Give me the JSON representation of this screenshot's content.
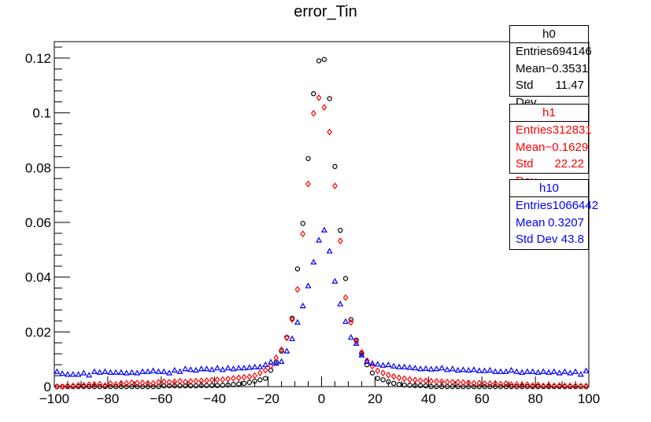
{
  "chart_data": {
    "type": "scatter",
    "title": "error_Tin",
    "xlabel": "",
    "ylabel": "",
    "xlim": [
      -100,
      100
    ],
    "ylim": [
      0,
      0.126
    ],
    "x_ticks": [
      "−100",
      "−80",
      "−60",
      "−40",
      "−20",
      "0",
      "20",
      "40",
      "60",
      "80",
      "100"
    ],
    "y_ticks": [
      "0",
      "0.02",
      "0.04",
      "0.06",
      "0.08",
      "0.1",
      "0.12"
    ],
    "grid": false,
    "series": [
      {
        "name": "h0",
        "marker": "circle",
        "color": "#000000",
        "points": [
          [
            -99,
            0.0
          ],
          [
            -97,
            0.0
          ],
          [
            -95,
            0.0
          ],
          [
            -93,
            0.0
          ],
          [
            -91,
            0.0
          ],
          [
            -89,
            0.0
          ],
          [
            -87,
            0.0
          ],
          [
            -85,
            0.0
          ],
          [
            -83,
            0.0
          ],
          [
            -81,
            0.0
          ],
          [
            -79,
            0.0
          ],
          [
            -77,
            0.0
          ],
          [
            -75,
            0.0
          ],
          [
            -73,
            0.0
          ],
          [
            -71,
            0.0
          ],
          [
            -69,
            0.0
          ],
          [
            -67,
            0.0
          ],
          [
            -65,
            0.0
          ],
          [
            -63,
            0.0
          ],
          [
            -61,
            0.0
          ],
          [
            -59,
            0.0003
          ],
          [
            -57,
            0.0003
          ],
          [
            -55,
            0.0003
          ],
          [
            -53,
            0.0003
          ],
          [
            -51,
            0.0003
          ],
          [
            -49,
            0.0003
          ],
          [
            -47,
            0.0003
          ],
          [
            -45,
            0.0004
          ],
          [
            -43,
            0.0004
          ],
          [
            -41,
            0.0004
          ],
          [
            -39,
            0.0004
          ],
          [
            -37,
            0.0005
          ],
          [
            -35,
            0.0006
          ],
          [
            -33,
            0.0008
          ],
          [
            -31,
            0.001
          ],
          [
            -29,
            0.0012
          ],
          [
            -27,
            0.0015
          ],
          [
            -25,
            0.002
          ],
          [
            -23,
            0.0025
          ],
          [
            -21,
            0.003
          ],
          [
            -19,
            0.006
          ],
          [
            -17,
            0.009
          ],
          [
            -15,
            0.013
          ],
          [
            -13,
            0.018
          ],
          [
            -11,
            0.025
          ],
          [
            -9,
            0.043
          ],
          [
            -7,
            0.0596
          ],
          [
            -5,
            0.0833
          ],
          [
            -3,
            0.107
          ],
          [
            -1,
            0.119
          ],
          [
            1,
            0.1195
          ],
          [
            3,
            0.1052
          ],
          [
            5,
            0.0804
          ],
          [
            7,
            0.0571
          ],
          [
            9,
            0.0395
          ],
          [
            11,
            0.0245
          ],
          [
            13,
            0.017
          ],
          [
            15,
            0.012
          ],
          [
            17,
            0.008
          ],
          [
            19,
            0.005
          ],
          [
            21,
            0.003
          ],
          [
            23,
            0.0025
          ],
          [
            25,
            0.0018
          ],
          [
            27,
            0.0012
          ],
          [
            29,
            0.0008
          ],
          [
            31,
            0.0006
          ],
          [
            33,
            0.0005
          ],
          [
            35,
            0.0004
          ],
          [
            37,
            0.0004
          ],
          [
            39,
            0.0003
          ],
          [
            41,
            0.0
          ],
          [
            43,
            0.0
          ],
          [
            45,
            0.0
          ],
          [
            47,
            0.0
          ],
          [
            49,
            0.0
          ],
          [
            51,
            0.0
          ],
          [
            53,
            0.0
          ],
          [
            55,
            0.0
          ],
          [
            57,
            0.0
          ],
          [
            59,
            0.0
          ],
          [
            61,
            0.0
          ],
          [
            63,
            0.0
          ],
          [
            65,
            0.0
          ],
          [
            67,
            0.0
          ],
          [
            69,
            0.0
          ],
          [
            71,
            0.0
          ],
          [
            73,
            0.0
          ],
          [
            75,
            0.0
          ],
          [
            77,
            0.0
          ],
          [
            79,
            0.0
          ],
          [
            81,
            0.0
          ],
          [
            83,
            0.0
          ],
          [
            85,
            0.0
          ],
          [
            87,
            0.0
          ],
          [
            89,
            0.0
          ],
          [
            91,
            0.0
          ],
          [
            93,
            0.0
          ],
          [
            95,
            0.0
          ],
          [
            97,
            0.0
          ],
          [
            99,
            0.0
          ]
        ]
      },
      {
        "name": "h1",
        "marker": "diamond",
        "color": "#ff0000",
        "points": [
          [
            -99,
            0.0
          ],
          [
            -97,
            0.0
          ],
          [
            -95,
            0.0003
          ],
          [
            -93,
            0.0003
          ],
          [
            -91,
            0.0005
          ],
          [
            -89,
            0.0005
          ],
          [
            -87,
            0.0007
          ],
          [
            -85,
            0.0008
          ],
          [
            -83,
            0.0009
          ],
          [
            -81,
            0.0004
          ],
          [
            -79,
            0.0011
          ],
          [
            -77,
            0.0008
          ],
          [
            -75,
            0.0012
          ],
          [
            -73,
            0.0012
          ],
          [
            -71,
            0.0014
          ],
          [
            -69,
            0.0013
          ],
          [
            -67,
            0.0014
          ],
          [
            -65,
            0.0012
          ],
          [
            -63,
            0.0012
          ],
          [
            -61,
            0.0016
          ],
          [
            -59,
            0.0018
          ],
          [
            -57,
            0.0016
          ],
          [
            -55,
            0.0018
          ],
          [
            -53,
            0.002
          ],
          [
            -51,
            0.0017
          ],
          [
            -49,
            0.0019
          ],
          [
            -47,
            0.002
          ],
          [
            -45,
            0.0021
          ],
          [
            -43,
            0.0022
          ],
          [
            -41,
            0.0024
          ],
          [
            -39,
            0.0025
          ],
          [
            -37,
            0.0026
          ],
          [
            -35,
            0.0028
          ],
          [
            -33,
            0.003
          ],
          [
            -31,
            0.0032
          ],
          [
            -29,
            0.0034
          ],
          [
            -27,
            0.0036
          ],
          [
            -25,
            0.004
          ],
          [
            -23,
            0.005
          ],
          [
            -21,
            0.006
          ],
          [
            -19,
            0.0075
          ],
          [
            -17,
            0.0105
          ],
          [
            -15,
            0.0135
          ],
          [
            -13,
            0.0178
          ],
          [
            -11,
            0.0245
          ],
          [
            -9,
            0.0355
          ],
          [
            -7,
            0.0558
          ],
          [
            -5,
            0.074
          ],
          [
            -3,
            0.0998
          ],
          [
            -1,
            0.1055
          ],
          [
            1,
            0.102
          ],
          [
            3,
            0.093
          ],
          [
            5,
            0.0733
          ],
          [
            7,
            0.0532
          ],
          [
            9,
            0.0325
          ],
          [
            11,
            0.0235
          ],
          [
            13,
            0.0165
          ],
          [
            15,
            0.0125
          ],
          [
            17,
            0.0095
          ],
          [
            19,
            0.0075
          ],
          [
            21,
            0.0058
          ],
          [
            23,
            0.005
          ],
          [
            25,
            0.0042
          ],
          [
            27,
            0.0037
          ],
          [
            29,
            0.0032
          ],
          [
            31,
            0.0029
          ],
          [
            33,
            0.0026
          ],
          [
            35,
            0.0024
          ],
          [
            37,
            0.0022
          ],
          [
            39,
            0.0021
          ],
          [
            41,
            0.002
          ],
          [
            43,
            0.0019
          ],
          [
            45,
            0.0018
          ],
          [
            47,
            0.0017
          ],
          [
            49,
            0.0017
          ],
          [
            51,
            0.0016
          ],
          [
            53,
            0.0015
          ],
          [
            55,
            0.0014
          ],
          [
            57,
            0.0012
          ],
          [
            59,
            0.0013
          ],
          [
            61,
            0.0011
          ],
          [
            63,
            0.0011
          ],
          [
            65,
            0.0012
          ],
          [
            67,
            0.0009
          ],
          [
            69,
            0.0011
          ],
          [
            71,
            0.0007
          ],
          [
            73,
            0.0008
          ],
          [
            75,
            0.0006
          ],
          [
            77,
            0.0007
          ],
          [
            79,
            0.0004
          ],
          [
            81,
            0.0006
          ],
          [
            83,
            0.0003
          ],
          [
            85,
            0.0005
          ],
          [
            87,
            0.0003
          ],
          [
            89,
            0.0004
          ],
          [
            91,
            0.0003
          ],
          [
            93,
            0.0003
          ],
          [
            95,
            0.0003
          ],
          [
            97,
            0.0002
          ],
          [
            99,
            0.0002
          ]
        ]
      },
      {
        "name": "h10",
        "marker": "triangle",
        "color": "#0000ff",
        "points": [
          [
            -99,
            0.0055
          ],
          [
            -97,
            0.0048
          ],
          [
            -95,
            0.0045
          ],
          [
            -93,
            0.0045
          ],
          [
            -91,
            0.0045
          ],
          [
            -89,
            0.005
          ],
          [
            -87,
            0.0042
          ],
          [
            -85,
            0.0055
          ],
          [
            -83,
            0.0052
          ],
          [
            -81,
            0.0055
          ],
          [
            -79,
            0.0052
          ],
          [
            -77,
            0.0052
          ],
          [
            -75,
            0.0052
          ],
          [
            -73,
            0.005
          ],
          [
            -71,
            0.0052
          ],
          [
            -69,
            0.005
          ],
          [
            -67,
            0.0055
          ],
          [
            -65,
            0.0055
          ],
          [
            -63,
            0.0058
          ],
          [
            -61,
            0.0055
          ],
          [
            -59,
            0.0055
          ],
          [
            -57,
            0.005
          ],
          [
            -55,
            0.006
          ],
          [
            -53,
            0.0055
          ],
          [
            -51,
            0.0065
          ],
          [
            -49,
            0.0062
          ],
          [
            -47,
            0.006
          ],
          [
            -45,
            0.0065
          ],
          [
            -43,
            0.0065
          ],
          [
            -41,
            0.0062
          ],
          [
            -39,
            0.0068
          ],
          [
            -37,
            0.0062
          ],
          [
            -35,
            0.0068
          ],
          [
            -33,
            0.0065
          ],
          [
            -31,
            0.0068
          ],
          [
            -29,
            0.0068
          ],
          [
            -27,
            0.007
          ],
          [
            -25,
            0.0072
          ],
          [
            -23,
            0.0072
          ],
          [
            -21,
            0.008
          ],
          [
            -19,
            0.009
          ],
          [
            -17,
            0.0085
          ],
          [
            -15,
            0.0092
          ],
          [
            -13,
            0.013
          ],
          [
            -11,
            0.0175
          ],
          [
            -9,
            0.0235
          ],
          [
            -7,
            0.0295
          ],
          [
            -5,
            0.0368
          ],
          [
            -3,
            0.0455
          ],
          [
            -1,
            0.0535
          ],
          [
            1,
            0.0572
          ],
          [
            3,
            0.0495
          ],
          [
            5,
            0.0385
          ],
          [
            7,
            0.0302
          ],
          [
            9,
            0.0238
          ],
          [
            11,
            0.018
          ],
          [
            13,
            0.0158
          ],
          [
            15,
            0.0115
          ],
          [
            17,
            0.0092
          ],
          [
            19,
            0.0085
          ],
          [
            21,
            0.0082
          ],
          [
            23,
            0.0078
          ],
          [
            25,
            0.008
          ],
          [
            27,
            0.0075
          ],
          [
            29,
            0.0072
          ],
          [
            31,
            0.0072
          ],
          [
            33,
            0.007
          ],
          [
            35,
            0.0068
          ],
          [
            37,
            0.0065
          ],
          [
            39,
            0.0066
          ],
          [
            41,
            0.0064
          ],
          [
            43,
            0.0065
          ],
          [
            45,
            0.0068
          ],
          [
            47,
            0.0062
          ],
          [
            49,
            0.0065
          ],
          [
            51,
            0.006
          ],
          [
            53,
            0.0062
          ],
          [
            55,
            0.006
          ],
          [
            57,
            0.0062
          ],
          [
            59,
            0.0058
          ],
          [
            61,
            0.0058
          ],
          [
            63,
            0.006
          ],
          [
            65,
            0.0055
          ],
          [
            67,
            0.0055
          ],
          [
            69,
            0.0055
          ],
          [
            71,
            0.006
          ],
          [
            73,
            0.0055
          ],
          [
            75,
            0.0052
          ],
          [
            77,
            0.0055
          ],
          [
            79,
            0.0055
          ],
          [
            81,
            0.0052
          ],
          [
            83,
            0.0055
          ],
          [
            85,
            0.0052
          ],
          [
            87,
            0.0055
          ],
          [
            89,
            0.005
          ],
          [
            91,
            0.0055
          ],
          [
            93,
            0.005
          ],
          [
            95,
            0.0055
          ],
          [
            97,
            0.0045
          ],
          [
            99,
            0.0058
          ]
        ]
      }
    ]
  },
  "stats": [
    {
      "name": "h0",
      "color": "#000000",
      "rows": [
        {
          "label": "Entries",
          "value": "694146"
        },
        {
          "label": "Mean",
          "value": "−0.3531"
        },
        {
          "label": "Std Dev",
          "value": "11.47"
        }
      ]
    },
    {
      "name": "h1",
      "color": "#ff0000",
      "rows": [
        {
          "label": "Entries",
          "value": "312831"
        },
        {
          "label": "Mean",
          "value": "−0.1629"
        },
        {
          "label": "Std Dev",
          "value": "22.22"
        }
      ]
    },
    {
      "name": "h10",
      "color": "#0000ff",
      "rows": [
        {
          "label": "Entries",
          "value": "1066442"
        },
        {
          "label": "Mean",
          "value": "0.3207"
        },
        {
          "label": "Std Dev",
          "value": "43.8"
        }
      ]
    }
  ]
}
